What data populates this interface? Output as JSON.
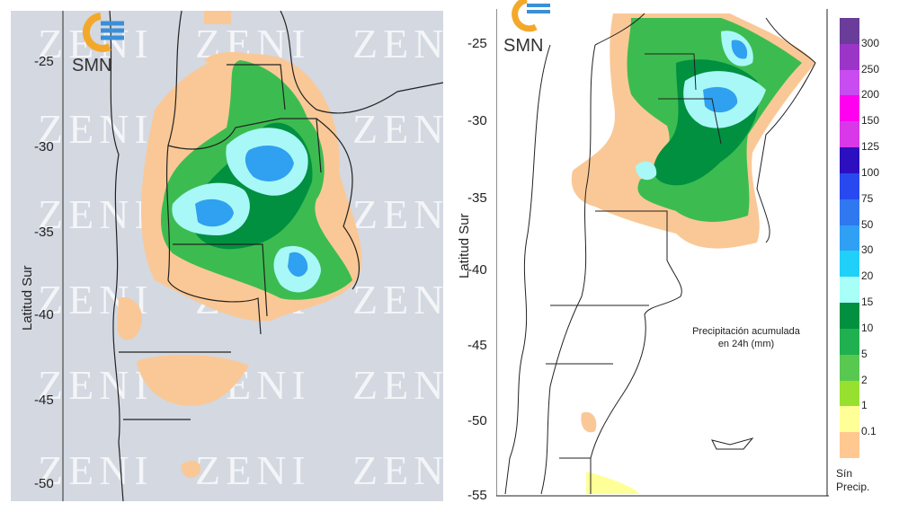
{
  "left_map": {
    "logo_text": "SMN",
    "watermark": "ZENI",
    "y_axis_label": "Latitud Sur",
    "y_ticks": [
      "-25",
      "-30",
      "-35",
      "-40",
      "-45",
      "-50"
    ]
  },
  "right_map": {
    "logo_text": "SMN",
    "y_axis_label": "Latitud Sur",
    "y_ticks": [
      "-25",
      "-30",
      "-35",
      "-40",
      "-45",
      "-50",
      "-55"
    ],
    "note_line1": "Precipitación acumulada",
    "note_line2": "en 24h (mm)"
  },
  "legend": {
    "items": [
      {
        "label": "300",
        "color": "#6a3d9a"
      },
      {
        "label": "250",
        "color": "#9a35c8"
      },
      {
        "label": "200",
        "color": "#c84cf0"
      },
      {
        "label": "150",
        "color": "#ff00f0"
      },
      {
        "label": "125",
        "color": "#d838e8"
      },
      {
        "label": "100",
        "color": "#2c10c0"
      },
      {
        "label": "75",
        "color": "#2848f0"
      },
      {
        "label": "50",
        "color": "#3078f0"
      },
      {
        "label": "30",
        "color": "#30a0f4"
      },
      {
        "label": "20",
        "color": "#20d0f8"
      },
      {
        "label": "15",
        "color": "#a8fff8"
      },
      {
        "label": "10",
        "color": "#009040"
      },
      {
        "label": "5",
        "color": "#20b050"
      },
      {
        "label": "2",
        "color": "#58c850"
      },
      {
        "label": "1",
        "color": "#98e030"
      },
      {
        "label": "0.1",
        "color": "#ffff98"
      },
      {
        "label": "",
        "color": "#ffc890"
      }
    ],
    "no_precip_line1": "Sín",
    "no_precip_line2": "Precip."
  }
}
